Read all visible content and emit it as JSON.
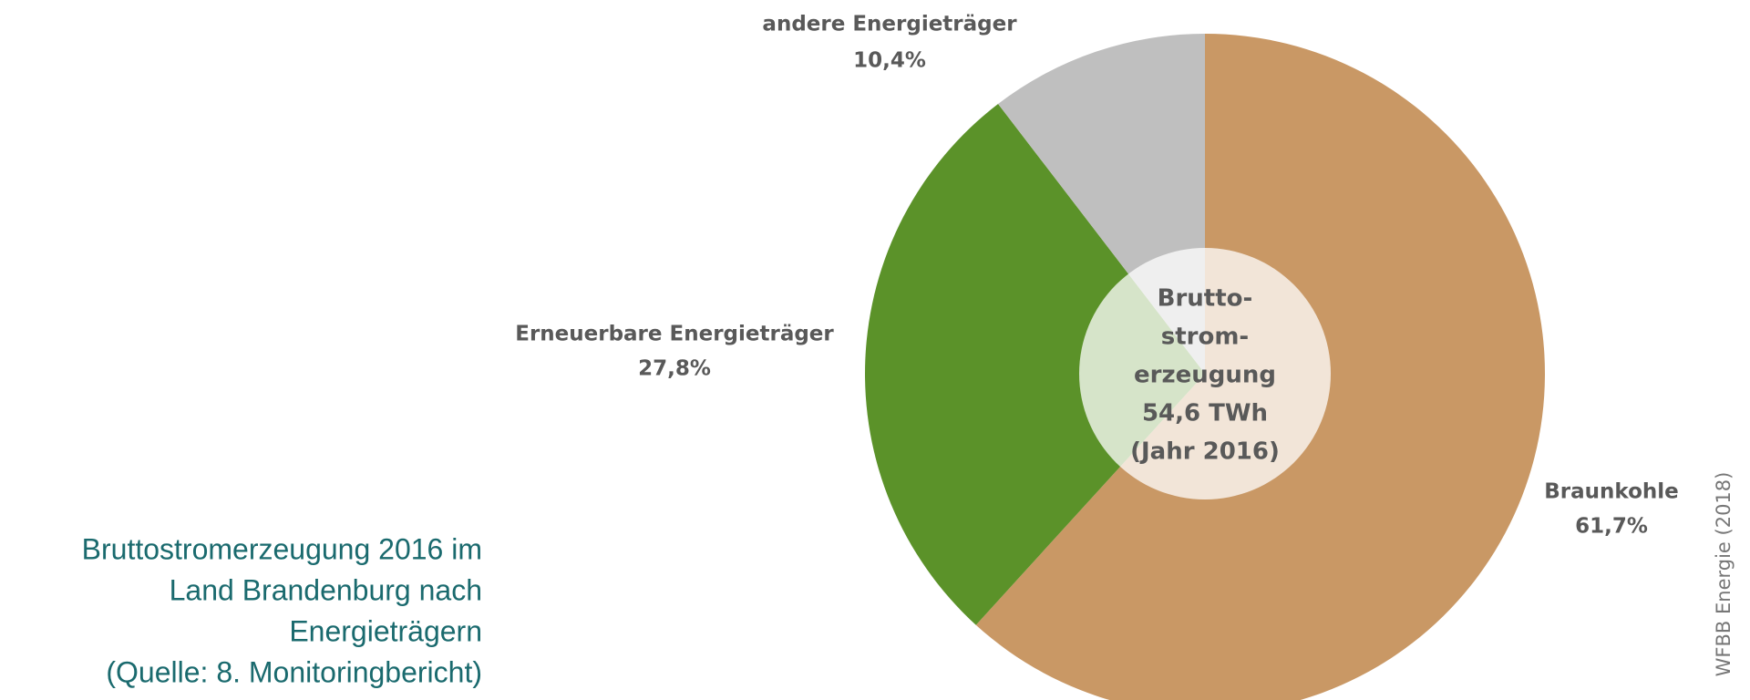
{
  "chart_data": {
    "type": "pie",
    "categories": [
      "Braunkohle",
      "Erneuerbare Energieträger",
      "andere Energieträger"
    ],
    "values": [
      61.7,
      27.8,
      10.4
    ],
    "value_labels": [
      "61,7%",
      "27,8%",
      "10,4%"
    ],
    "colors": [
      "#c99865",
      "#5b9229",
      "#bfbfbf"
    ],
    "center_text": [
      "Brutto-",
      "strom-",
      "erzeugung",
      "54,6 TWh",
      "(Jahr 2016)"
    ],
    "source": "WFBB Energie (2018)"
  },
  "caption": [
    "Bruttostromerzeugung 2016 im",
    "Land Brandenburg nach",
    "Energieträgern",
    "(Quelle: 8. Monitoringbericht)"
  ]
}
